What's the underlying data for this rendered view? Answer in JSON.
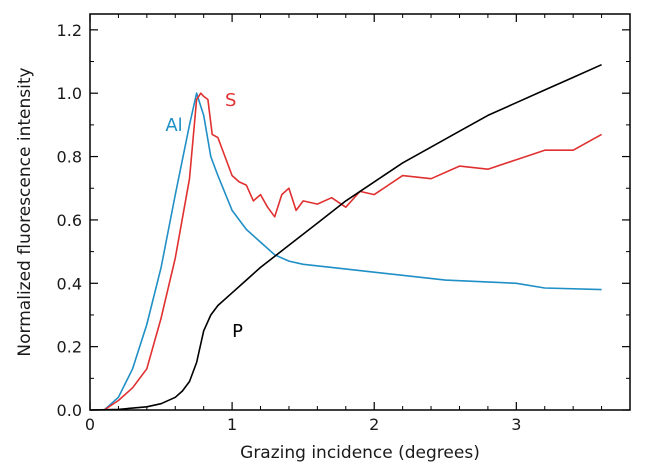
{
  "chart_data": {
    "type": "line",
    "xlabel": "Grazing incidence (degrees)",
    "ylabel": "Normalized fluorescence intensity",
    "xlim": [
      0,
      3.8
    ],
    "ylim": [
      0,
      1.25
    ],
    "x_ticks": [
      0,
      1,
      2,
      3
    ],
    "y_ticks": [
      0,
      0.2,
      0.4,
      0.6,
      0.8,
      1.0,
      1.2
    ],
    "x_tick_labels": [
      "0",
      "1",
      "2",
      "3"
    ],
    "y_tick_labels": [
      "0.0",
      "0.2",
      "0.4",
      "0.6",
      "0.8",
      "1.0",
      "1.2"
    ],
    "grid": false,
    "legend": "inline labels",
    "series": [
      {
        "name": "Al",
        "color": "#1f8fc6",
        "label_at": [
          0.53,
          0.88
        ],
        "points": [
          [
            0.1,
            0.0
          ],
          [
            0.2,
            0.04
          ],
          [
            0.3,
            0.13
          ],
          [
            0.4,
            0.27
          ],
          [
            0.5,
            0.45
          ],
          [
            0.6,
            0.68
          ],
          [
            0.7,
            0.9
          ],
          [
            0.75,
            1.0
          ],
          [
            0.8,
            0.93
          ],
          [
            0.85,
            0.8
          ],
          [
            0.9,
            0.74
          ],
          [
            1.0,
            0.63
          ],
          [
            1.1,
            0.57
          ],
          [
            1.2,
            0.53
          ],
          [
            1.3,
            0.49
          ],
          [
            1.4,
            0.47
          ],
          [
            1.5,
            0.46
          ],
          [
            1.7,
            0.45
          ],
          [
            2.0,
            0.435
          ],
          [
            2.5,
            0.41
          ],
          [
            3.0,
            0.4
          ],
          [
            3.2,
            0.385
          ],
          [
            3.6,
            0.38
          ]
        ]
      },
      {
        "name": "S",
        "color": "#e03030",
        "label_at": [
          0.95,
          0.96
        ],
        "points": [
          [
            0.1,
            0.0
          ],
          [
            0.2,
            0.03
          ],
          [
            0.3,
            0.07
          ],
          [
            0.4,
            0.13
          ],
          [
            0.5,
            0.29
          ],
          [
            0.6,
            0.48
          ],
          [
            0.7,
            0.73
          ],
          [
            0.75,
            0.98
          ],
          [
            0.78,
            1.0
          ],
          [
            0.8,
            0.99
          ],
          [
            0.83,
            0.98
          ],
          [
            0.86,
            0.87
          ],
          [
            0.9,
            0.86
          ],
          [
            0.95,
            0.8
          ],
          [
            1.0,
            0.74
          ],
          [
            1.05,
            0.72
          ],
          [
            1.1,
            0.71
          ],
          [
            1.15,
            0.66
          ],
          [
            1.2,
            0.68
          ],
          [
            1.25,
            0.64
          ],
          [
            1.3,
            0.61
          ],
          [
            1.35,
            0.68
          ],
          [
            1.4,
            0.7
          ],
          [
            1.45,
            0.63
          ],
          [
            1.5,
            0.66
          ],
          [
            1.6,
            0.65
          ],
          [
            1.7,
            0.67
          ],
          [
            1.8,
            0.64
          ],
          [
            1.9,
            0.69
          ],
          [
            2.0,
            0.68
          ],
          [
            2.2,
            0.74
          ],
          [
            2.4,
            0.73
          ],
          [
            2.6,
            0.77
          ],
          [
            2.8,
            0.76
          ],
          [
            3.0,
            0.79
          ],
          [
            3.2,
            0.82
          ],
          [
            3.4,
            0.82
          ],
          [
            3.6,
            0.87
          ]
        ]
      },
      {
        "name": "P",
        "color": "#000000",
        "label_at": [
          1.0,
          0.23
        ],
        "points": [
          [
            0.0,
            0.0
          ],
          [
            0.2,
            0.002
          ],
          [
            0.4,
            0.01
          ],
          [
            0.5,
            0.02
          ],
          [
            0.6,
            0.04
          ],
          [
            0.65,
            0.06
          ],
          [
            0.7,
            0.09
          ],
          [
            0.75,
            0.15
          ],
          [
            0.8,
            0.25
          ],
          [
            0.85,
            0.3
          ],
          [
            0.9,
            0.33
          ],
          [
            1.0,
            0.37
          ],
          [
            1.1,
            0.41
          ],
          [
            1.2,
            0.45
          ],
          [
            1.4,
            0.52
          ],
          [
            1.6,
            0.59
          ],
          [
            1.8,
            0.66
          ],
          [
            2.0,
            0.72
          ],
          [
            2.2,
            0.78
          ],
          [
            2.4,
            0.83
          ],
          [
            2.6,
            0.88
          ],
          [
            2.8,
            0.93
          ],
          [
            3.0,
            0.97
          ],
          [
            3.2,
            1.01
          ],
          [
            3.4,
            1.05
          ],
          [
            3.6,
            1.09
          ]
        ]
      }
    ]
  }
}
